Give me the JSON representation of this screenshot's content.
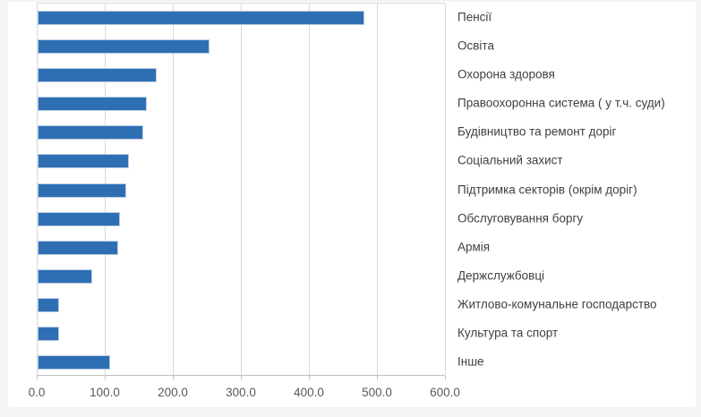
{
  "page": {
    "background": "#f4f4f4",
    "panel_background": "#ffffff"
  },
  "chart_data": {
    "type": "bar",
    "orientation": "horizontal",
    "title": "",
    "xlabel": "",
    "ylabel": "",
    "grid": true,
    "legend": false,
    "xlim": [
      0,
      600
    ],
    "x_ticks": [
      0,
      100,
      200,
      300,
      400,
      500,
      600
    ],
    "x_tick_labels": [
      "0.0",
      "100.0",
      "200.0",
      "300.0",
      "400.0",
      "500.0",
      "600.0"
    ],
    "categories": [
      "Пенсії",
      "Освіта",
      "Охорона здоровя",
      "Правоохоронна система ( у т.ч. суди)",
      "Будівництво та ремонт доріг",
      "Соціальний захист",
      "Підтримка секторів (окрім доріг)",
      "Обслуговування боргу",
      "Армія",
      "Держслужбовці",
      "Житлово-комунальне господарство",
      "Культура та спорт",
      "Інше"
    ],
    "values": [
      480,
      253,
      175,
      160,
      155,
      134,
      130,
      121,
      119,
      80,
      32,
      31,
      107
    ],
    "bar_color": "#2e6fb4",
    "bar_border_color": "#b9cbe5",
    "gridline_color": "#d9d9d9",
    "axis_color": "#bfbfbf",
    "category_label_color": "#404040",
    "tick_label_color": "#595959"
  }
}
